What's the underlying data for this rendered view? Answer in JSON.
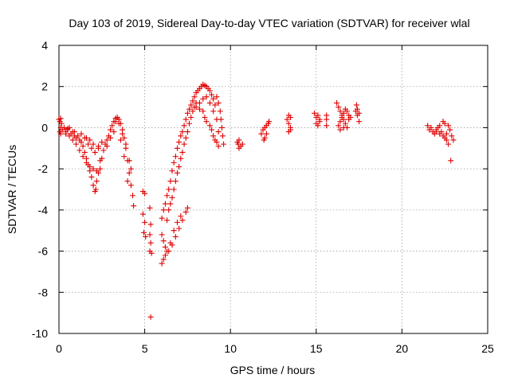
{
  "chart_data": {
    "type": "scatter",
    "title": "Day 103 of 2019, Sidereal Day-to-day VTEC variation (SDTVAR) for receiver wlal",
    "xlabel": "GPS time / hours",
    "ylabel": "SDTVAR / TECUs",
    "xlim": [
      0,
      25
    ],
    "ylim": [
      -10,
      4
    ],
    "xticks": [
      "0",
      "5",
      "10",
      "15",
      "20",
      "25"
    ],
    "yticks": [
      "4",
      "2",
      "0",
      "-2",
      "-4",
      "-6",
      "-8",
      "-10"
    ],
    "grid": true,
    "marker": "+",
    "color": "#e00000",
    "series": [
      {
        "name": "wlal",
        "points": [
          [
            0.0,
            0.4
          ],
          [
            0.05,
            0.3
          ],
          [
            0.1,
            0.45
          ],
          [
            0.15,
            0.2
          ],
          [
            0.1,
            0.0
          ],
          [
            0.05,
            -0.2
          ],
          [
            0.1,
            -0.3
          ],
          [
            0.2,
            -0.1
          ],
          [
            0.3,
            0.0
          ],
          [
            0.4,
            -0.2
          ],
          [
            0.5,
            -0.1
          ],
          [
            0.6,
            0.0
          ],
          [
            0.7,
            -0.3
          ],
          [
            0.8,
            -0.2
          ],
          [
            0.9,
            -0.4
          ],
          [
            1.0,
            -0.5
          ],
          [
            1.1,
            -0.4
          ],
          [
            1.2,
            -0.6
          ],
          [
            1.3,
            -0.7
          ],
          [
            1.4,
            -0.9
          ],
          [
            1.5,
            -1.2
          ],
          [
            1.6,
            -1.5
          ],
          [
            1.7,
            -1.8
          ],
          [
            1.8,
            -2.1
          ],
          [
            1.9,
            -2.4
          ],
          [
            2.0,
            -2.8
          ],
          [
            2.1,
            -3.1
          ],
          [
            2.15,
            -3.0
          ],
          [
            2.2,
            -2.6
          ],
          [
            2.3,
            -2.2
          ],
          [
            2.4,
            -2.0
          ],
          [
            2.5,
            -1.5
          ],
          [
            2.6,
            -1.1
          ],
          [
            2.7,
            -0.8
          ],
          [
            2.8,
            -0.6
          ],
          [
            0.4,
            -0.3
          ],
          [
            0.6,
            -0.4
          ],
          [
            0.8,
            -0.6
          ],
          [
            1.0,
            -0.8
          ],
          [
            1.2,
            -1.1
          ],
          [
            1.4,
            -1.4
          ],
          [
            1.6,
            -1.7
          ],
          [
            1.8,
            -1.9
          ],
          [
            2.0,
            -2.0
          ],
          [
            2.2,
            -2.1
          ],
          [
            2.4,
            -1.6
          ],
          [
            0.5,
            -0.05
          ],
          [
            0.9,
            -0.2
          ],
          [
            1.3,
            -0.3
          ],
          [
            1.6,
            -0.5
          ],
          [
            1.8,
            -0.6
          ],
          [
            2.0,
            -0.8
          ],
          [
            2.3,
            -0.9
          ],
          [
            2.5,
            -0.7
          ],
          [
            1.5,
            -0.5
          ],
          [
            1.7,
            -0.8
          ],
          [
            1.9,
            -1.0
          ],
          [
            2.1,
            -1.2
          ],
          [
            2.3,
            -1.0
          ],
          [
            2.9,
            -0.4
          ],
          [
            3.0,
            -0.1
          ],
          [
            3.1,
            0.1
          ],
          [
            3.2,
            0.3
          ],
          [
            3.3,
            0.45
          ],
          [
            3.4,
            0.5
          ],
          [
            3.5,
            0.4
          ],
          [
            3.6,
            0.2
          ],
          [
            3.7,
            -0.1
          ],
          [
            3.8,
            -0.5
          ],
          [
            3.9,
            -1.0
          ],
          [
            4.0,
            -1.6
          ],
          [
            4.1,
            -2.2
          ],
          [
            4.2,
            -2.8
          ],
          [
            4.3,
            -3.3
          ],
          [
            4.35,
            -3.8
          ],
          [
            3.3,
            0.3
          ],
          [
            3.5,
            0.2
          ],
          [
            3.7,
            -0.3
          ],
          [
            3.9,
            -0.8
          ],
          [
            4.1,
            -1.6
          ],
          [
            4.2,
            -2.0
          ],
          [
            2.8,
            -0.9
          ],
          [
            3.0,
            -0.5
          ],
          [
            3.2,
            -0.2
          ],
          [
            3.6,
            -0.6
          ],
          [
            3.8,
            -1.4
          ],
          [
            4.0,
            -2.6
          ],
          [
            4.9,
            -3.1
          ],
          [
            5.0,
            -3.2
          ],
          [
            4.9,
            -4.2
          ],
          [
            5.0,
            -4.6
          ],
          [
            4.95,
            -5.1
          ],
          [
            5.05,
            -5.3
          ],
          [
            5.3,
            -3.9
          ],
          [
            5.35,
            -4.7
          ],
          [
            5.3,
            -5.2
          ],
          [
            5.35,
            -5.6
          ],
          [
            5.3,
            -6.0
          ],
          [
            5.4,
            -6.1
          ],
          [
            5.35,
            -9.2
          ],
          [
            6.0,
            -6.6
          ],
          [
            6.1,
            -6.4
          ],
          [
            6.2,
            -6.2
          ],
          [
            6.4,
            -6.0
          ],
          [
            6.6,
            -5.7
          ],
          [
            6.8,
            -5.3
          ],
          [
            7.0,
            -4.9
          ],
          [
            7.2,
            -4.5
          ],
          [
            7.4,
            -4.1
          ],
          [
            7.5,
            -3.9
          ],
          [
            6.0,
            -5.2
          ],
          [
            6.1,
            -5.5
          ],
          [
            6.2,
            -5.8
          ],
          [
            6.3,
            -6.0
          ],
          [
            6.5,
            -5.6
          ],
          [
            6.7,
            -5.0
          ],
          [
            6.9,
            -4.6
          ],
          [
            7.1,
            -4.3
          ],
          [
            6.0,
            -4.4
          ],
          [
            6.1,
            -4.0
          ],
          [
            6.2,
            -3.7
          ],
          [
            6.3,
            -3.3
          ],
          [
            6.4,
            -3.0
          ],
          [
            6.5,
            -2.6
          ],
          [
            6.6,
            -2.1
          ],
          [
            6.7,
            -1.7
          ],
          [
            6.8,
            -1.4
          ],
          [
            6.9,
            -1.0
          ],
          [
            7.0,
            -0.7
          ],
          [
            7.1,
            -0.4
          ],
          [
            7.2,
            -0.2
          ],
          [
            7.3,
            0.1
          ],
          [
            7.4,
            0.4
          ],
          [
            7.5,
            0.7
          ],
          [
            7.6,
            0.9
          ],
          [
            7.7,
            1.1
          ],
          [
            6.3,
            -4.5
          ],
          [
            6.4,
            -4.0
          ],
          [
            6.5,
            -3.7
          ],
          [
            6.6,
            -3.4
          ],
          [
            6.7,
            -3.0
          ],
          [
            6.8,
            -2.6
          ],
          [
            6.9,
            -2.2
          ],
          [
            7.0,
            -1.9
          ],
          [
            7.1,
            -1.5
          ],
          [
            7.2,
            -1.2
          ],
          [
            7.3,
            -0.8
          ],
          [
            7.4,
            -0.5
          ],
          [
            7.5,
            -0.2
          ],
          [
            7.6,
            0.2
          ],
          [
            7.7,
            0.5
          ],
          [
            7.8,
            0.8
          ],
          [
            7.9,
            1.0
          ],
          [
            8.0,
            1.2
          ],
          [
            7.8,
            1.3
          ],
          [
            7.9,
            1.5
          ],
          [
            8.0,
            1.7
          ],
          [
            8.1,
            1.8
          ],
          [
            8.2,
            1.9
          ],
          [
            8.3,
            2.0
          ],
          [
            8.4,
            2.1
          ],
          [
            8.5,
            2.05
          ],
          [
            8.6,
            2.0
          ],
          [
            8.7,
            1.9
          ],
          [
            8.8,
            1.8
          ],
          [
            8.9,
            1.6
          ],
          [
            9.0,
            1.4
          ],
          [
            9.1,
            1.1
          ],
          [
            8.2,
            0.9
          ],
          [
            8.4,
            0.8
          ],
          [
            8.5,
            0.5
          ],
          [
            8.6,
            0.3
          ],
          [
            8.8,
            0.1
          ],
          [
            8.9,
            -0.1
          ],
          [
            9.0,
            -0.4
          ],
          [
            9.1,
            -0.6
          ],
          [
            9.2,
            -0.7
          ],
          [
            9.3,
            -0.9
          ],
          [
            9.2,
            1.5
          ],
          [
            9.3,
            1.2
          ],
          [
            9.4,
            0.8
          ],
          [
            9.45,
            0.4
          ],
          [
            9.5,
            0.0
          ],
          [
            9.55,
            -0.4
          ],
          [
            9.6,
            -0.8
          ],
          [
            8.0,
            1.0
          ],
          [
            8.2,
            1.2
          ],
          [
            8.4,
            1.4
          ],
          [
            8.6,
            1.5
          ],
          [
            8.8,
            1.2
          ],
          [
            9.0,
            0.8
          ],
          [
            9.2,
            0.4
          ],
          [
            9.3,
            -0.2
          ],
          [
            10.4,
            -0.7
          ],
          [
            10.45,
            -0.8
          ],
          [
            10.5,
            -1.0
          ],
          [
            10.6,
            -0.9
          ],
          [
            10.7,
            -0.8
          ],
          [
            10.5,
            -0.6
          ],
          [
            11.8,
            -0.3
          ],
          [
            11.9,
            -0.1
          ],
          [
            12.0,
            0.0
          ],
          [
            12.1,
            0.1
          ],
          [
            12.2,
            0.2
          ],
          [
            12.25,
            0.3
          ],
          [
            12.0,
            -0.5
          ],
          [
            12.1,
            -0.3
          ],
          [
            11.95,
            -0.6
          ],
          [
            13.3,
            0.4
          ],
          [
            13.4,
            0.6
          ],
          [
            13.5,
            0.5
          ],
          [
            13.4,
            0.2
          ],
          [
            13.5,
            0.0
          ],
          [
            13.4,
            -0.2
          ],
          [
            13.5,
            -0.1
          ],
          [
            14.9,
            0.7
          ],
          [
            15.0,
            0.5
          ],
          [
            15.1,
            0.6
          ],
          [
            15.2,
            0.4
          ],
          [
            15.0,
            0.2
          ],
          [
            15.1,
            0.1
          ],
          [
            15.2,
            0.3
          ],
          [
            15.6,
            0.6
          ],
          [
            15.6,
            0.4
          ],
          [
            15.6,
            0.1
          ],
          [
            16.2,
            1.2
          ],
          [
            16.3,
            1.0
          ],
          [
            16.4,
            0.8
          ],
          [
            16.5,
            0.6
          ],
          [
            16.6,
            0.4
          ],
          [
            16.7,
            0.2
          ],
          [
            16.8,
            0.0
          ],
          [
            16.3,
            0.1
          ],
          [
            16.4,
            0.3
          ],
          [
            16.5,
            0.5
          ],
          [
            16.6,
            0.7
          ],
          [
            16.7,
            0.9
          ],
          [
            16.8,
            0.8
          ],
          [
            16.9,
            0.6
          ],
          [
            17.0,
            0.5
          ],
          [
            16.4,
            -0.1
          ],
          [
            16.6,
            0.0
          ],
          [
            16.9,
            0.4
          ],
          [
            17.3,
            0.8
          ],
          [
            17.35,
            1.1
          ],
          [
            17.4,
            0.6
          ],
          [
            17.5,
            0.3
          ],
          [
            17.4,
            0.9
          ],
          [
            17.5,
            0.7
          ],
          [
            21.5,
            0.1
          ],
          [
            21.6,
            -0.1
          ],
          [
            21.7,
            0.0
          ],
          [
            21.8,
            -0.2
          ],
          [
            21.9,
            -0.3
          ],
          [
            22.0,
            -0.1
          ],
          [
            22.1,
            0.0
          ],
          [
            22.2,
            0.1
          ],
          [
            22.3,
            -0.2
          ],
          [
            22.4,
            -0.4
          ],
          [
            22.5,
            -0.5
          ],
          [
            22.6,
            -0.6
          ],
          [
            22.7,
            -0.8
          ],
          [
            22.6,
            -0.3
          ],
          [
            22.5,
            0.2
          ],
          [
            22.4,
            0.3
          ],
          [
            22.7,
            0.1
          ],
          [
            22.8,
            -0.1
          ],
          [
            22.9,
            -0.4
          ],
          [
            23.0,
            -0.6
          ],
          [
            22.85,
            -1.6
          ],
          [
            22.2,
            -0.3
          ],
          [
            22.0,
            -0.2
          ]
        ]
      }
    ]
  }
}
